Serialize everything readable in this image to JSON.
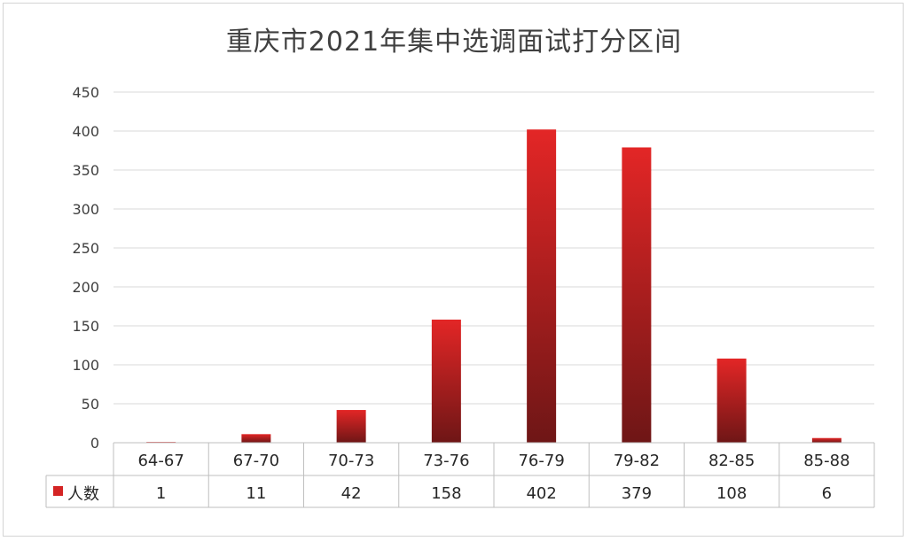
{
  "chart_data": {
    "type": "bar",
    "title": "重庆市2021年集中选调面试打分区间",
    "categories": [
      "64-67",
      "67-70",
      "70-73",
      "73-76",
      "76-79",
      "79-82",
      "82-85",
      "85-88"
    ],
    "series": [
      {
        "name": "人数",
        "values": [
          1,
          11,
          42,
          158,
          402,
          379,
          108,
          6
        ]
      }
    ],
    "data_labels": [
      "1",
      "11",
      "42",
      "158",
      "402",
      "379",
      "108",
      "6"
    ],
    "yticks": [
      "0",
      "50",
      "100",
      "150",
      "200",
      "250",
      "300",
      "350",
      "400",
      "450"
    ],
    "ylim": [
      0,
      450
    ],
    "grid": true,
    "legend": "data-table",
    "colors": {
      "bar_top": "#e32626",
      "bar_bottom": "#6e1616",
      "legend_key": "#d42424",
      "grid": "#d9d9d9"
    }
  }
}
